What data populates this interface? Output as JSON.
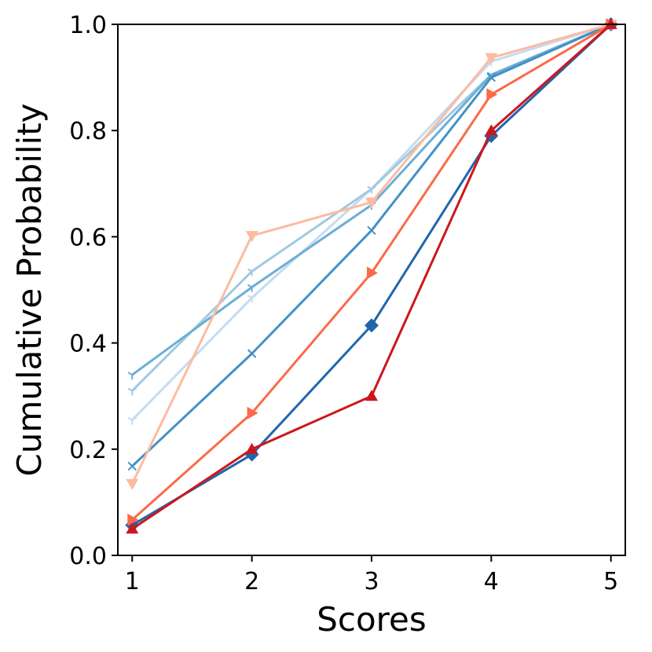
{
  "chart_data": {
    "type": "line",
    "xlabel": "Scores",
    "ylabel": "Cumulative Probability",
    "xlim": [
      0.88,
      5.12
    ],
    "ylim": [
      0.0,
      1.0
    ],
    "xticks": [
      1,
      2,
      3,
      4,
      5
    ],
    "xtick_labels": [
      "1",
      "2",
      "3",
      "4",
      "5"
    ],
    "yticks": [
      0.0,
      0.2,
      0.4,
      0.6,
      0.8,
      1.0
    ],
    "ytick_labels": [
      "0.0",
      "0.2",
      "0.4",
      "0.6",
      "0.8",
      "1.0"
    ],
    "grid": false,
    "x": [
      1,
      2,
      3,
      4,
      5
    ],
    "series": [
      {
        "color": "#c6dbef",
        "marker": "tri_down",
        "values": [
          0.255,
          0.485,
          0.69,
          0.93,
          1.0
        ]
      },
      {
        "color": "#9ecae1",
        "marker": "tri_down",
        "values": [
          0.31,
          0.535,
          0.69,
          0.905,
          1.0
        ]
      },
      {
        "color": "#6baed6",
        "marker": "tri_down",
        "values": [
          0.34,
          0.505,
          0.66,
          0.905,
          1.0
        ]
      },
      {
        "color": "#4292c6",
        "marker": "x",
        "values": [
          0.168,
          0.38,
          0.612,
          0.9,
          1.0
        ]
      },
      {
        "color": "#2166ac",
        "marker": "diamond",
        "values": [
          0.057,
          0.19,
          0.433,
          0.79,
          1.0
        ]
      },
      {
        "color": "#fcbba1",
        "marker": "triangle_down",
        "values": [
          0.135,
          0.602,
          0.665,
          0.937,
          1.0
        ]
      },
      {
        "color": "#fb6a4a",
        "marker": "triangle_right",
        "values": [
          0.067,
          0.268,
          0.532,
          0.868,
          1.0
        ]
      },
      {
        "color": "#cb181d",
        "marker": "triangle_up",
        "values": [
          0.05,
          0.2,
          0.3,
          0.8,
          1.0
        ]
      }
    ]
  }
}
